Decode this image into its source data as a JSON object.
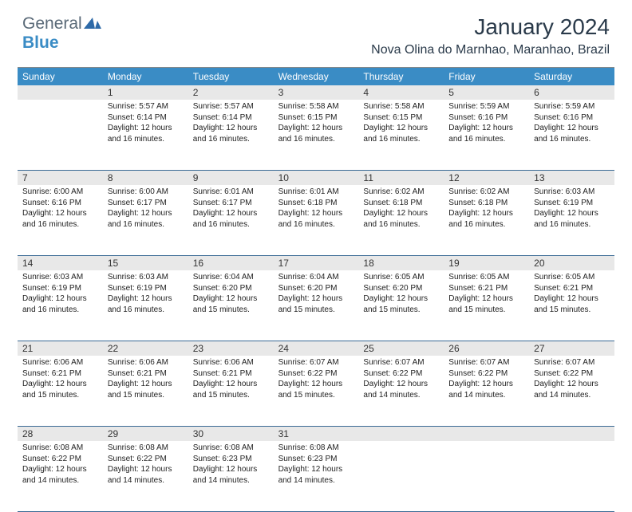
{
  "logo": {
    "general": "General",
    "blue": "Blue"
  },
  "title": "January 2024",
  "location": "Nova Olina do Marnhao, Maranhao, Brazil",
  "colors": {
    "header_bar": "#3a8cc5",
    "daynum_bg": "#e8e8e8",
    "week_border": "#3a6a95",
    "title_color": "#2a3a4a"
  },
  "daynames": [
    "Sunday",
    "Monday",
    "Tuesday",
    "Wednesday",
    "Thursday",
    "Friday",
    "Saturday"
  ],
  "weeks": [
    [
      {
        "n": "",
        "sr": "",
        "ss": "",
        "dl": ""
      },
      {
        "n": "1",
        "sr": "Sunrise: 5:57 AM",
        "ss": "Sunset: 6:14 PM",
        "dl": "Daylight: 12 hours and 16 minutes."
      },
      {
        "n": "2",
        "sr": "Sunrise: 5:57 AM",
        "ss": "Sunset: 6:14 PM",
        "dl": "Daylight: 12 hours and 16 minutes."
      },
      {
        "n": "3",
        "sr": "Sunrise: 5:58 AM",
        "ss": "Sunset: 6:15 PM",
        "dl": "Daylight: 12 hours and 16 minutes."
      },
      {
        "n": "4",
        "sr": "Sunrise: 5:58 AM",
        "ss": "Sunset: 6:15 PM",
        "dl": "Daylight: 12 hours and 16 minutes."
      },
      {
        "n": "5",
        "sr": "Sunrise: 5:59 AM",
        "ss": "Sunset: 6:16 PM",
        "dl": "Daylight: 12 hours and 16 minutes."
      },
      {
        "n": "6",
        "sr": "Sunrise: 5:59 AM",
        "ss": "Sunset: 6:16 PM",
        "dl": "Daylight: 12 hours and 16 minutes."
      }
    ],
    [
      {
        "n": "7",
        "sr": "Sunrise: 6:00 AM",
        "ss": "Sunset: 6:16 PM",
        "dl": "Daylight: 12 hours and 16 minutes."
      },
      {
        "n": "8",
        "sr": "Sunrise: 6:00 AM",
        "ss": "Sunset: 6:17 PM",
        "dl": "Daylight: 12 hours and 16 minutes."
      },
      {
        "n": "9",
        "sr": "Sunrise: 6:01 AM",
        "ss": "Sunset: 6:17 PM",
        "dl": "Daylight: 12 hours and 16 minutes."
      },
      {
        "n": "10",
        "sr": "Sunrise: 6:01 AM",
        "ss": "Sunset: 6:18 PM",
        "dl": "Daylight: 12 hours and 16 minutes."
      },
      {
        "n": "11",
        "sr": "Sunrise: 6:02 AM",
        "ss": "Sunset: 6:18 PM",
        "dl": "Daylight: 12 hours and 16 minutes."
      },
      {
        "n": "12",
        "sr": "Sunrise: 6:02 AM",
        "ss": "Sunset: 6:18 PM",
        "dl": "Daylight: 12 hours and 16 minutes."
      },
      {
        "n": "13",
        "sr": "Sunrise: 6:03 AM",
        "ss": "Sunset: 6:19 PM",
        "dl": "Daylight: 12 hours and 16 minutes."
      }
    ],
    [
      {
        "n": "14",
        "sr": "Sunrise: 6:03 AM",
        "ss": "Sunset: 6:19 PM",
        "dl": "Daylight: 12 hours and 16 minutes."
      },
      {
        "n": "15",
        "sr": "Sunrise: 6:03 AM",
        "ss": "Sunset: 6:19 PM",
        "dl": "Daylight: 12 hours and 16 minutes."
      },
      {
        "n": "16",
        "sr": "Sunrise: 6:04 AM",
        "ss": "Sunset: 6:20 PM",
        "dl": "Daylight: 12 hours and 15 minutes."
      },
      {
        "n": "17",
        "sr": "Sunrise: 6:04 AM",
        "ss": "Sunset: 6:20 PM",
        "dl": "Daylight: 12 hours and 15 minutes."
      },
      {
        "n": "18",
        "sr": "Sunrise: 6:05 AM",
        "ss": "Sunset: 6:20 PM",
        "dl": "Daylight: 12 hours and 15 minutes."
      },
      {
        "n": "19",
        "sr": "Sunrise: 6:05 AM",
        "ss": "Sunset: 6:21 PM",
        "dl": "Daylight: 12 hours and 15 minutes."
      },
      {
        "n": "20",
        "sr": "Sunrise: 6:05 AM",
        "ss": "Sunset: 6:21 PM",
        "dl": "Daylight: 12 hours and 15 minutes."
      }
    ],
    [
      {
        "n": "21",
        "sr": "Sunrise: 6:06 AM",
        "ss": "Sunset: 6:21 PM",
        "dl": "Daylight: 12 hours and 15 minutes."
      },
      {
        "n": "22",
        "sr": "Sunrise: 6:06 AM",
        "ss": "Sunset: 6:21 PM",
        "dl": "Daylight: 12 hours and 15 minutes."
      },
      {
        "n": "23",
        "sr": "Sunrise: 6:06 AM",
        "ss": "Sunset: 6:21 PM",
        "dl": "Daylight: 12 hours and 15 minutes."
      },
      {
        "n": "24",
        "sr": "Sunrise: 6:07 AM",
        "ss": "Sunset: 6:22 PM",
        "dl": "Daylight: 12 hours and 15 minutes."
      },
      {
        "n": "25",
        "sr": "Sunrise: 6:07 AM",
        "ss": "Sunset: 6:22 PM",
        "dl": "Daylight: 12 hours and 14 minutes."
      },
      {
        "n": "26",
        "sr": "Sunrise: 6:07 AM",
        "ss": "Sunset: 6:22 PM",
        "dl": "Daylight: 12 hours and 14 minutes."
      },
      {
        "n": "27",
        "sr": "Sunrise: 6:07 AM",
        "ss": "Sunset: 6:22 PM",
        "dl": "Daylight: 12 hours and 14 minutes."
      }
    ],
    [
      {
        "n": "28",
        "sr": "Sunrise: 6:08 AM",
        "ss": "Sunset: 6:22 PM",
        "dl": "Daylight: 12 hours and 14 minutes."
      },
      {
        "n": "29",
        "sr": "Sunrise: 6:08 AM",
        "ss": "Sunset: 6:22 PM",
        "dl": "Daylight: 12 hours and 14 minutes."
      },
      {
        "n": "30",
        "sr": "Sunrise: 6:08 AM",
        "ss": "Sunset: 6:23 PM",
        "dl": "Daylight: 12 hours and 14 minutes."
      },
      {
        "n": "31",
        "sr": "Sunrise: 6:08 AM",
        "ss": "Sunset: 6:23 PM",
        "dl": "Daylight: 12 hours and 14 minutes."
      },
      {
        "n": "",
        "sr": "",
        "ss": "",
        "dl": ""
      },
      {
        "n": "",
        "sr": "",
        "ss": "",
        "dl": ""
      },
      {
        "n": "",
        "sr": "",
        "ss": "",
        "dl": ""
      }
    ]
  ]
}
